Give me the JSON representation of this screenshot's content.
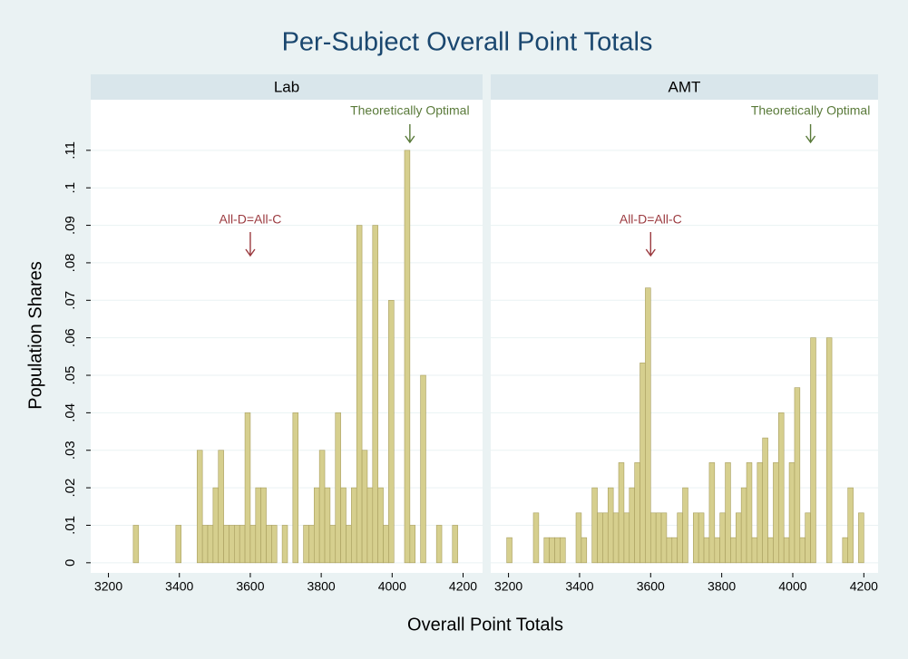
{
  "title": "Per-Subject Overall Point Totals",
  "x_label": "Overall Point Totals",
  "y_label": "Population Shares",
  "chart_data": [
    {
      "type": "histogram",
      "panel": "Lab",
      "color": "#d6cf8e",
      "edge_color": "#a89e5e",
      "bins": [
        3270,
        3285,
        3300,
        3315,
        3330,
        3345,
        3360,
        3375,
        3390,
        3405,
        3420,
        3435,
        3450,
        3465,
        3480,
        3495,
        3510,
        3525,
        3540,
        3555,
        3570,
        3585,
        3600,
        3615,
        3630,
        3645,
        3660,
        3675,
        3690,
        3705,
        3720,
        3735,
        3750,
        3765,
        3780,
        3795,
        3810,
        3825,
        3840,
        3855,
        3870,
        3885,
        3900,
        3915,
        3930,
        3945,
        3960,
        3975,
        3990,
        4005,
        4020,
        4035,
        4050,
        4065,
        4080,
        4095,
        4110,
        4125,
        4140,
        4155,
        4170,
        4185,
        4200
      ],
      "values": [
        0.01,
        0,
        0,
        0,
        0,
        0,
        0,
        0,
        0.01,
        0,
        0,
        0,
        0.03,
        0.01,
        0.01,
        0.02,
        0.03,
        0.01,
        0.01,
        0.01,
        0.01,
        0.04,
        0.01,
        0.02,
        0.02,
        0.01,
        0.01,
        0,
        0.01,
        0,
        0.04,
        0,
        0.01,
        0.01,
        0.02,
        0.03,
        0.02,
        0.01,
        0.04,
        0.02,
        0.01,
        0.02,
        0.09,
        0.03,
        0.02,
        0.09,
        0.02,
        0.01,
        0.07,
        0,
        0,
        0.11,
        0.01,
        0,
        0.05,
        0,
        0,
        0.01,
        0,
        0,
        0.01,
        0
      ],
      "xlim": [
        3150,
        4255
      ],
      "ylim": [
        -0.0027,
        0.1235
      ],
      "xticks": [
        3200,
        3400,
        3600,
        3800,
        4000,
        4200
      ],
      "yticks": [
        0,
        {
          "value": 0.01,
          "label": ".01"
        },
        {
          "value": 0.02,
          "label": ".02"
        },
        {
          "value": 0.03,
          "label": ".03"
        },
        {
          "value": 0.04,
          "label": ".04"
        },
        {
          "value": 0.05,
          "label": ".05"
        },
        {
          "value": 0.06,
          "label": ".06"
        },
        {
          "value": 0.07,
          "label": ".07"
        },
        {
          "value": 0.08,
          "label": ".08"
        },
        {
          "value": 0.09,
          "label": ".09"
        },
        {
          "value": 0.1,
          "label": ".1"
        },
        {
          "value": 0.11,
          "label": ".11"
        }
      ],
      "annotations": [
        {
          "text": "All-D=All-C",
          "x": 3600,
          "color": "#9b3a3f"
        },
        {
          "text": "Theoretically Optimal",
          "x": 4050,
          "color": "#5a7a3a"
        }
      ]
    },
    {
      "type": "histogram",
      "panel": "AMT",
      "color": "#d6cf8e",
      "edge_color": "#a89e5e",
      "bins": [
        3195,
        3210,
        3225,
        3240,
        3255,
        3270,
        3285,
        3300,
        3315,
        3330,
        3345,
        3360,
        3375,
        3390,
        3405,
        3420,
        3435,
        3450,
        3465,
        3480,
        3495,
        3510,
        3525,
        3540,
        3555,
        3570,
        3585,
        3600,
        3615,
        3630,
        3645,
        3660,
        3675,
        3690,
        3705,
        3720,
        3735,
        3750,
        3765,
        3780,
        3795,
        3810,
        3825,
        3840,
        3855,
        3870,
        3885,
        3900,
        3915,
        3930,
        3945,
        3960,
        3975,
        3990,
        4005,
        4020,
        4035,
        4050,
        4065,
        4080,
        4095,
        4110,
        4125,
        4140,
        4155,
        4170,
        4185,
        4200
      ],
      "values": [
        0.0067,
        0,
        0,
        0,
        0,
        0.0133,
        0,
        0.0067,
        0.0067,
        0.0067,
        0.0067,
        0,
        0,
        0.0133,
        0.0067,
        0,
        0.02,
        0.0133,
        0.0133,
        0.02,
        0.0133,
        0.0267,
        0.0133,
        0.02,
        0.0267,
        0.0533,
        0.0733,
        0.0133,
        0.0133,
        0.0133,
        0.0067,
        0.0067,
        0.0133,
        0.02,
        0,
        0.0133,
        0.0133,
        0.0067,
        0.0267,
        0.0067,
        0.0133,
        0.0267,
        0.0067,
        0.0133,
        0.02,
        0.0267,
        0.0067,
        0.0267,
        0.0333,
        0.0067,
        0.0267,
        0.04,
        0.0067,
        0.0267,
        0.0467,
        0.0067,
        0.0133,
        0.06,
        0,
        0,
        0.06,
        0,
        0,
        0.0067,
        0.02,
        0,
        0.0133
      ],
      "xlim": [
        3150,
        4240
      ],
      "ylim": [
        -0.0027,
        0.1235
      ],
      "xticks": [
        3200,
        3400,
        3600,
        3800,
        4000,
        4200
      ],
      "yticks": [
        0,
        0.01,
        0.02,
        0.03,
        0.04,
        0.05,
        0.06,
        0.07,
        0.08,
        0.09,
        0.1,
        0.11
      ],
      "annotations": [
        {
          "text": "All-D=All-C",
          "x": 3600,
          "color": "#9b3a3f"
        },
        {
          "text": "Theoretically Optimal",
          "x": 4050,
          "color": "#5a7a3a"
        }
      ]
    }
  ]
}
